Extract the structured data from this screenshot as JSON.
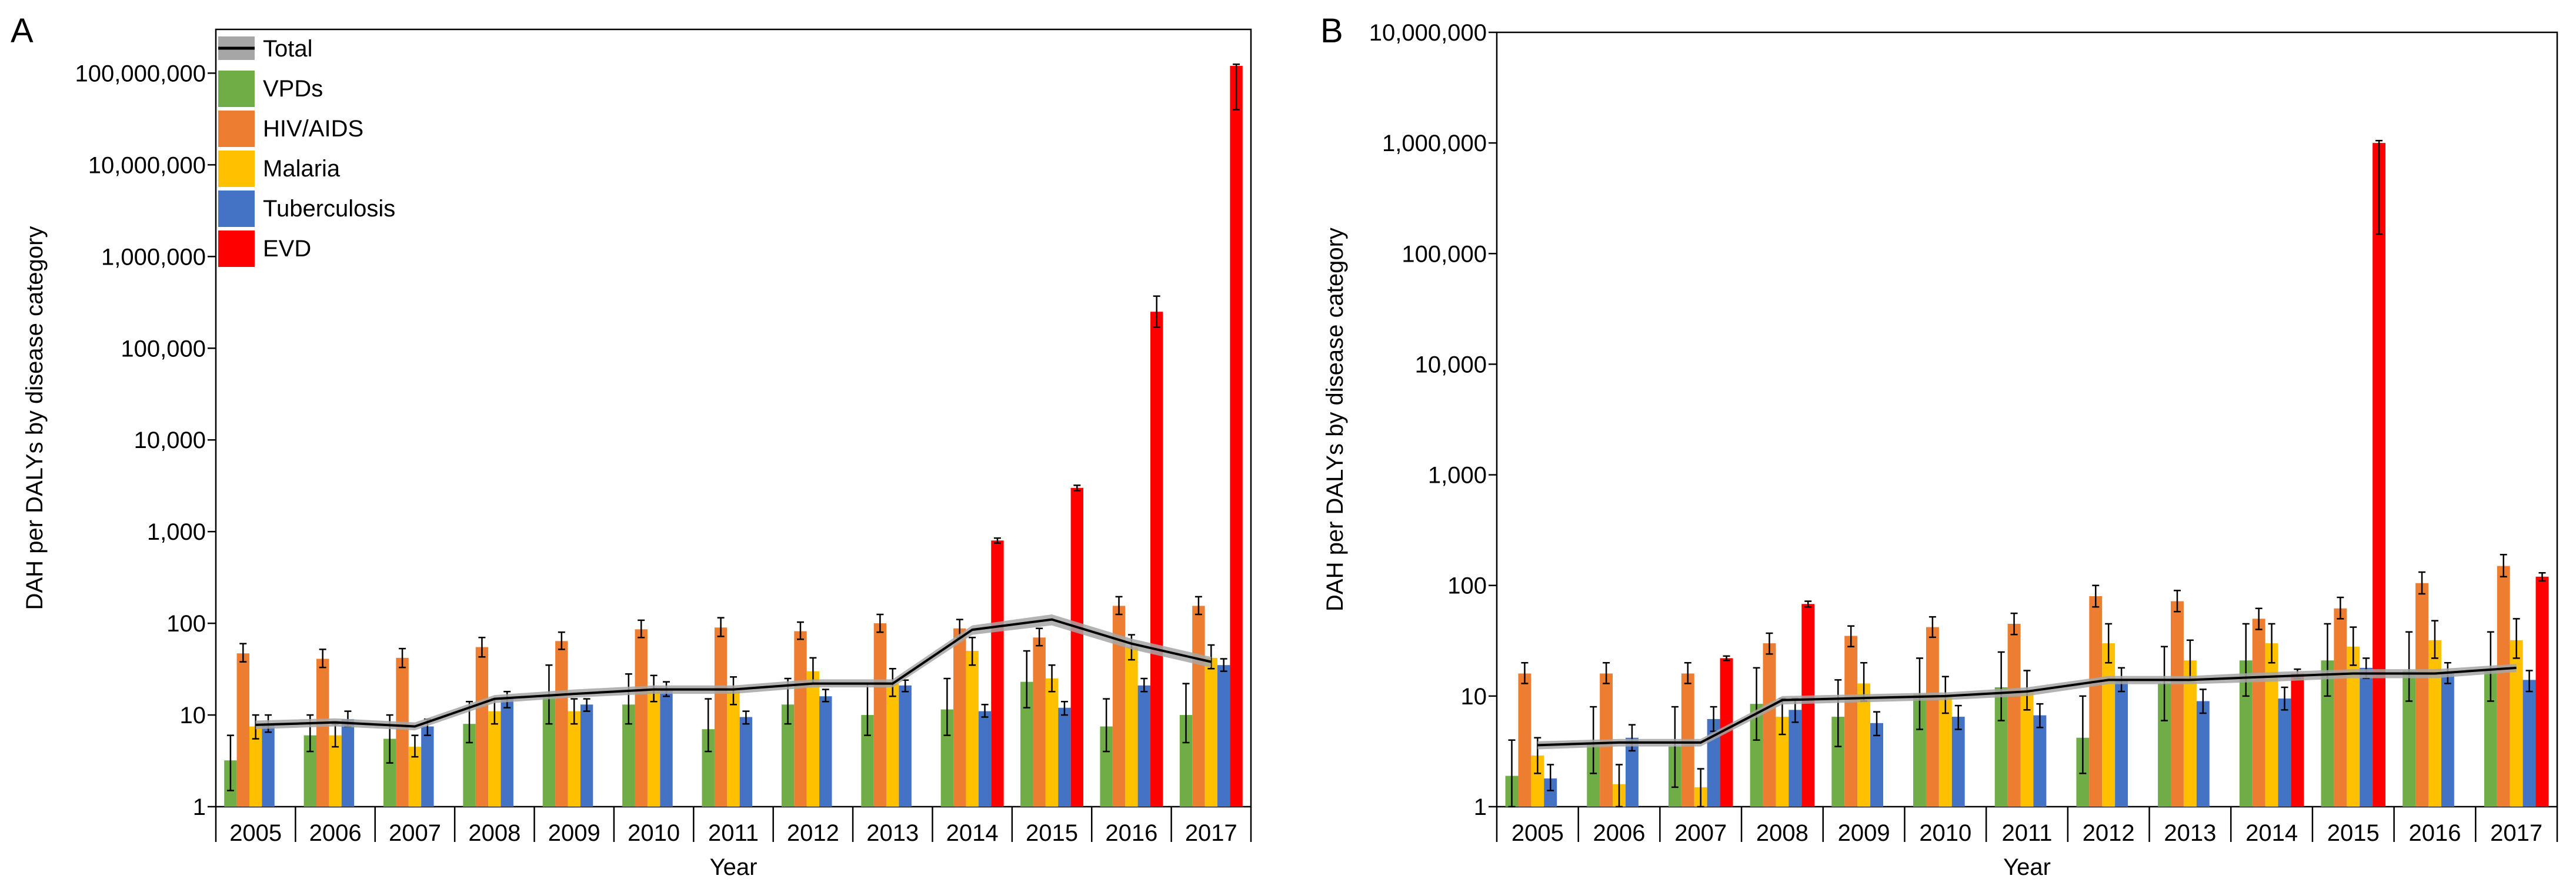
{
  "chart_data": [
    {
      "panel_label": "A",
      "type": "bar",
      "yscale": "log",
      "ylim": [
        1,
        300000000
      ],
      "yticks": [
        1,
        10,
        100,
        1000,
        10000,
        100000,
        1000000,
        10000000,
        100000000
      ],
      "ytick_labels": [
        "1",
        "10",
        "100",
        "1,000",
        "10,000",
        "100,000",
        "1,000,000",
        "10,000,000",
        "100,000,000"
      ],
      "xlabel": "Year",
      "ylabel": "DAH per DALYs by disease category",
      "categories": [
        "2005",
        "2006",
        "2007",
        "2008",
        "2009",
        "2010",
        "2011",
        "2012",
        "2013",
        "2014",
        "2015",
        "2016",
        "2017"
      ],
      "legend_position": "top-left",
      "legend": [
        {
          "name": "Total",
          "color": "#000000",
          "kind": "line"
        },
        {
          "name": "VPDs",
          "color": "#70ad47",
          "kind": "bar"
        },
        {
          "name": "HIV/AIDS",
          "color": "#ed7d31",
          "kind": "bar"
        },
        {
          "name": "Malaria",
          "color": "#ffc000",
          "kind": "bar"
        },
        {
          "name": "Tuberculosis",
          "color": "#4472c4",
          "kind": "bar"
        },
        {
          "name": "EVD",
          "color": "#ff0000",
          "kind": "bar"
        }
      ],
      "series": [
        {
          "name": "VPDs",
          "color": "#70ad47",
          "values": [
            3.2,
            6,
            5.5,
            8,
            16,
            13,
            7,
            13,
            10,
            11.5,
            23,
            7.5,
            10
          ],
          "err_low": [
            1.5,
            4,
            3,
            5,
            8,
            8,
            4,
            8,
            6,
            6,
            12,
            4,
            5
          ],
          "err_high": [
            6,
            10,
            10,
            14,
            35,
            28,
            15,
            25,
            22,
            25,
            50,
            15,
            22
          ]
        },
        {
          "name": "HIV/AIDS",
          "color": "#ed7d31",
          "values": [
            47,
            41,
            42,
            55,
            64,
            86,
            90,
            82,
            100,
            88,
            70,
            155,
            155
          ],
          "err_low": [
            38,
            33,
            33,
            43,
            52,
            70,
            72,
            67,
            80,
            70,
            57,
            125,
            125
          ],
          "err_high": [
            60,
            52,
            53,
            70,
            80,
            108,
            115,
            103,
            125,
            110,
            88,
            195,
            195
          ]
        },
        {
          "name": "Malaria",
          "color": "#ffc000",
          "values": [
            7.5,
            6,
            4.5,
            11,
            11,
            19,
            18,
            30,
            22,
            50,
            25,
            55,
            42
          ],
          "err_low": [
            5.5,
            4.5,
            3.5,
            8,
            8,
            14,
            13,
            22,
            16,
            35,
            18,
            40,
            32
          ],
          "err_high": [
            10,
            8,
            6,
            15,
            15,
            27,
            26,
            42,
            32,
            70,
            35,
            75,
            58
          ]
        },
        {
          "name": "Tuberculosis",
          "color": "#4472c4",
          "values": [
            8,
            9,
            7.5,
            15,
            13,
            19,
            9.5,
            16,
            21,
            11,
            12,
            21,
            35
          ],
          "err_low": [
            6.5,
            7.5,
            6,
            12,
            11,
            16,
            8,
            14,
            18,
            9.5,
            10,
            18,
            30
          ],
          "err_high": [
            10,
            11,
            9,
            18,
            15,
            23,
            11,
            19,
            24,
            13,
            14,
            25,
            41
          ]
        },
        {
          "name": "EVD",
          "color": "#ff0000",
          "values": [
            null,
            null,
            null,
            null,
            null,
            null,
            null,
            null,
            null,
            800,
            3000,
            250000,
            120000000
          ],
          "err_low": [
            null,
            null,
            null,
            null,
            null,
            null,
            null,
            null,
            null,
            750,
            2800,
            170000,
            40000000
          ],
          "err_high": [
            null,
            null,
            null,
            null,
            null,
            null,
            null,
            null,
            null,
            850,
            3200,
            370000,
            125000000
          ]
        }
      ],
      "total": {
        "name": "Total",
        "values": [
          7.8,
          8.3,
          7.5,
          15,
          17,
          19,
          19,
          22,
          22,
          85,
          110,
          60,
          38
        ],
        "band_low": [
          7,
          7.5,
          6.8,
          13.5,
          15.5,
          17,
          17,
          20,
          20,
          75,
          95,
          52,
          33
        ],
        "band_high": [
          8.7,
          9.2,
          8.3,
          16.5,
          19,
          21,
          21,
          24.5,
          24.5,
          95,
          125,
          68,
          43
        ]
      }
    },
    {
      "panel_label": "B",
      "type": "bar",
      "yscale": "log",
      "ylim": [
        1,
        10000000
      ],
      "yticks": [
        1,
        10,
        100,
        1000,
        10000,
        100000,
        1000000,
        10000000
      ],
      "ytick_labels": [
        "1",
        "10",
        "100",
        "1,000",
        "10,000",
        "100,000",
        "1,000,000",
        "10,000,000"
      ],
      "xlabel": "Year",
      "ylabel": "DAH per DALYs by disease category",
      "categories": [
        "2005",
        "2006",
        "2007",
        "2008",
        "2009",
        "2010",
        "2011",
        "2012",
        "2013",
        "2014",
        "2015",
        "2016",
        "2017"
      ],
      "series": [
        {
          "name": "VPDs",
          "color": "#70ad47",
          "values": [
            1.9,
            3.8,
            3.5,
            8.5,
            6.5,
            10.5,
            12,
            4.2,
            13,
            21,
            21,
            17,
            17
          ],
          "err_low": [
            1,
            2,
            1.5,
            4,
            3.5,
            5,
            6,
            2,
            6,
            10,
            10,
            9,
            9
          ],
          "err_high": [
            4,
            8,
            8,
            18,
            14,
            22,
            25,
            10,
            28,
            45,
            45,
            38,
            38
          ]
        },
        {
          "name": "HIV/AIDS",
          "color": "#ed7d31",
          "values": [
            16,
            16,
            16,
            30,
            35,
            42,
            45,
            80,
            72,
            50,
            62,
            105,
            150
          ],
          "err_low": [
            13,
            13,
            13,
            24,
            28,
            34,
            36,
            64,
            58,
            40,
            50,
            84,
            120
          ],
          "err_high": [
            20,
            20,
            20,
            37,
            43,
            52,
            56,
            100,
            90,
            62,
            78,
            132,
            190
          ]
        },
        {
          "name": "Malaria",
          "color": "#ffc000",
          "values": [
            2.9,
            1.6,
            1.5,
            6.5,
            13,
            10,
            11,
            30,
            21,
            30,
            28,
            32,
            32
          ],
          "err_low": [
            2,
            1,
            1,
            4.5,
            9,
            7,
            7.5,
            20,
            14,
            20,
            19,
            22,
            22
          ],
          "err_high": [
            4.2,
            2.4,
            2.2,
            9.5,
            20,
            15,
            17,
            45,
            32,
            45,
            42,
            48,
            50
          ]
        },
        {
          "name": "Tuberculosis",
          "color": "#4472c4",
          "values": [
            1.8,
            4.2,
            6.2,
            7.5,
            5.7,
            6.5,
            6.7,
            14,
            9,
            9.5,
            18,
            16,
            14
          ],
          "err_low": [
            1.4,
            3.2,
            4.8,
            5.8,
            4.4,
            5,
            5.2,
            11,
            7,
            7.5,
            14.5,
            13,
            11
          ],
          "err_high": [
            2.4,
            5.5,
            8,
            9.5,
            7.2,
            8.2,
            8.5,
            18,
            11.5,
            12,
            22,
            20,
            17
          ]
        },
        {
          "name": "EVD",
          "color": "#ff0000",
          "values": [
            null,
            null,
            22,
            68,
            null,
            null,
            null,
            null,
            null,
            16,
            1000000,
            null,
            120
          ],
          "err_low": [
            null,
            null,
            21,
            64,
            null,
            null,
            null,
            null,
            null,
            14.5,
            150000,
            null,
            110
          ],
          "err_high": [
            null,
            null,
            23,
            72,
            null,
            null,
            null,
            null,
            null,
            17.5,
            1050000,
            null,
            130
          ]
        }
      ],
      "total": {
        "name": "Total",
        "values": [
          3.6,
          3.8,
          3.8,
          9.2,
          9.6,
          10,
          11,
          14,
          14,
          15,
          16,
          16,
          18
        ],
        "band_low": [
          3.3,
          3.5,
          3.5,
          8.4,
          8.8,
          9.2,
          10,
          12.8,
          12.8,
          13.5,
          14.5,
          14.5,
          16.5
        ],
        "band_high": [
          3.9,
          4.1,
          4.1,
          10,
          10.4,
          10.8,
          12,
          15.2,
          15.2,
          16.5,
          17.5,
          17.5,
          19.5
        ]
      }
    }
  ]
}
